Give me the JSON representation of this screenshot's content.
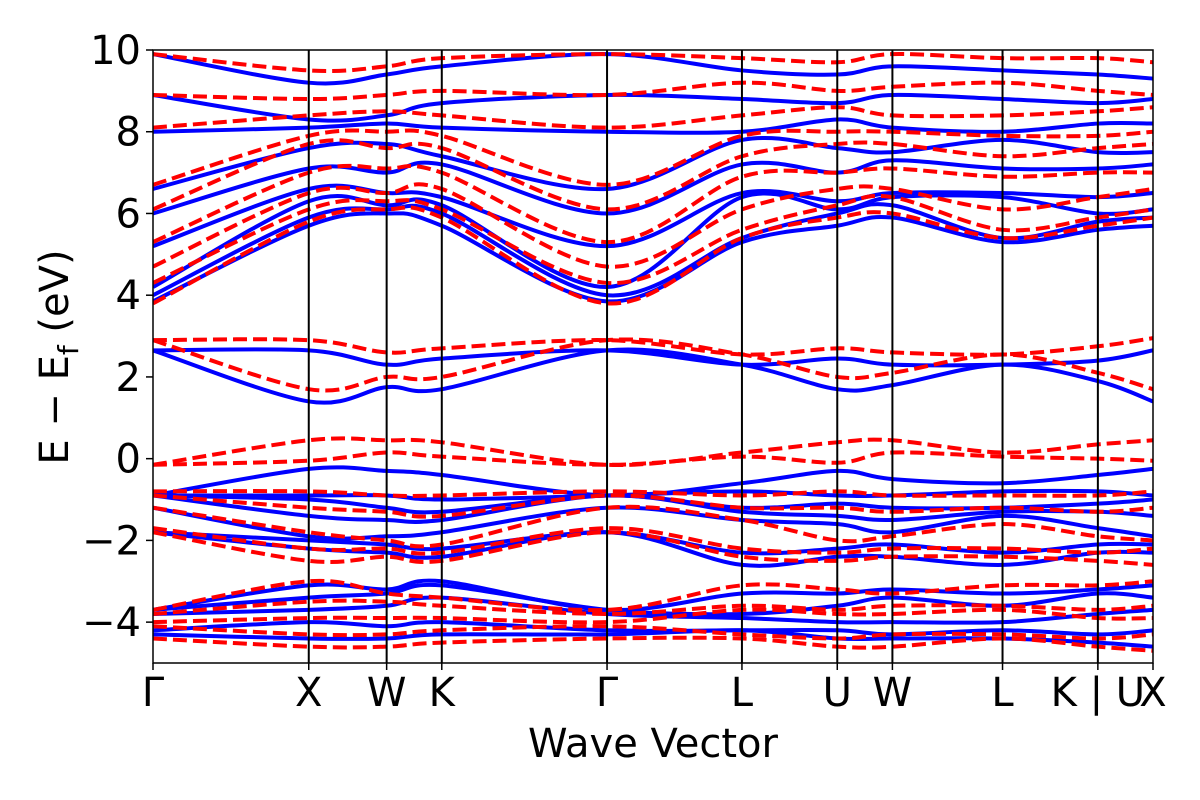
{
  "chart_data": {
    "type": "line",
    "xlabel": "Wave Vector",
    "ylabel_main": "E − E",
    "ylabel_sub": "f",
    "ylabel_unit": " (eV)",
    "ylim": [
      -5,
      10
    ],
    "yticks": [
      {
        "value": 10,
        "label": "10"
      },
      {
        "value": 8,
        "label": "8"
      },
      {
        "value": 6,
        "label": "6"
      },
      {
        "value": 4,
        "label": "4"
      },
      {
        "value": 2,
        "label": "2"
      },
      {
        "value": 0,
        "label": "0"
      },
      {
        "value": -2,
        "label": "−2"
      },
      {
        "value": -4,
        "label": "−4"
      }
    ],
    "kpoints": [
      {
        "label": "Γ",
        "x": 0.0
      },
      {
        "label": "X",
        "x": 1.0
      },
      {
        "label": "W",
        "x": 1.5
      },
      {
        "label": "K",
        "x": 1.854
      },
      {
        "label": "Γ",
        "x": 2.915
      },
      {
        "label": "L",
        "x": 3.781
      },
      {
        "label": "U",
        "x": 4.393
      },
      {
        "label": "W",
        "x": 4.747
      },
      {
        "label": "L",
        "x": 5.454
      },
      {
        "label": "K | U",
        "x": 6.066
      },
      {
        "label": "X",
        "x": 6.42
      }
    ],
    "grid": false,
    "series": [
      {
        "style": "solid",
        "color": "#0000ff",
        "bands": [
          [
            -4.3,
            -4.4,
            -4.4,
            -4.3,
            -4.3,
            -4.2,
            -4.4,
            -4.4,
            -4.4,
            -4.5,
            -4.6
          ],
          [
            -4.2,
            -4.0,
            -4.1,
            -4.0,
            -4.2,
            -4.2,
            -4.2,
            -4.3,
            -4.2,
            -4.3,
            -4.2
          ],
          [
            -3.8,
            -3.7,
            -3.6,
            -3.4,
            -3.8,
            -3.9,
            -4.0,
            -4.0,
            -4.0,
            -3.8,
            -3.7
          ],
          [
            -3.7,
            -3.4,
            -3.3,
            -3.1,
            -3.7,
            -3.8,
            -3.6,
            -3.4,
            -3.6,
            -3.3,
            -3.4
          ],
          [
            -3.7,
            -3.1,
            -3.2,
            -3.0,
            -3.7,
            -3.3,
            -3.3,
            -3.2,
            -3.3,
            -3.2,
            -3.1
          ],
          [
            -1.8,
            -2.2,
            -2.3,
            -2.4,
            -1.8,
            -2.6,
            -2.4,
            -2.4,
            -2.6,
            -2.3,
            -2.3
          ],
          [
            -1.8,
            -2.0,
            -2.1,
            -2.2,
            -1.8,
            -2.3,
            -2.2,
            -2.1,
            -2.3,
            -2.1,
            -2.1
          ],
          [
            -1.2,
            -1.9,
            -1.9,
            -1.8,
            -1.2,
            -1.5,
            -1.6,
            -1.8,
            -1.4,
            -1.7,
            -1.9
          ],
          [
            -0.9,
            -1.4,
            -1.5,
            -1.5,
            -0.9,
            -1.3,
            -1.4,
            -1.5,
            -1.3,
            -1.3,
            -1.4
          ],
          [
            -0.9,
            -1.0,
            -1.2,
            -1.3,
            -0.9,
            -1.2,
            -1.1,
            -1.2,
            -1.2,
            -1.1,
            -1.0
          ],
          [
            -0.9,
            -0.9,
            -0.9,
            -1.0,
            -0.9,
            -0.8,
            -0.9,
            -0.9,
            -0.8,
            -0.8,
            -0.9
          ],
          [
            -0.9,
            -0.25,
            -0.3,
            -0.4,
            -0.9,
            -0.6,
            -0.3,
            -0.5,
            -0.6,
            -0.4,
            -0.25
          ],
          [
            2.65,
            1.4,
            1.75,
            1.7,
            2.65,
            2.3,
            1.7,
            1.8,
            2.3,
            1.9,
            1.4
          ],
          [
            2.65,
            2.65,
            2.3,
            2.45,
            2.65,
            2.3,
            2.45,
            2.3,
            2.3,
            2.4,
            2.65
          ],
          [
            3.85,
            5.7,
            6.0,
            5.7,
            3.85,
            5.3,
            5.7,
            5.9,
            5.3,
            5.6,
            5.7
          ],
          [
            4.0,
            5.9,
            6.1,
            6.0,
            4.0,
            5.4,
            6.0,
            6.2,
            5.4,
            5.8,
            5.9
          ],
          [
            4.2,
            6.3,
            6.2,
            6.2,
            4.2,
            6.4,
            6.1,
            6.4,
            6.4,
            6.0,
            6.1
          ],
          [
            5.2,
            6.6,
            6.5,
            6.4,
            5.2,
            6.5,
            6.3,
            6.5,
            6.5,
            6.4,
            6.5
          ],
          [
            6.0,
            7.1,
            7.0,
            7.2,
            6.0,
            7.2,
            7.0,
            7.3,
            7.1,
            7.1,
            7.2
          ],
          [
            6.6,
            7.6,
            7.7,
            7.4,
            6.6,
            7.8,
            7.6,
            7.5,
            7.8,
            7.5,
            7.5
          ],
          [
            8.0,
            8.1,
            8.2,
            8.1,
            8.0,
            8.0,
            8.3,
            8.1,
            8.0,
            8.2,
            8.2
          ],
          [
            8.9,
            8.3,
            8.4,
            8.7,
            8.9,
            8.8,
            8.7,
            8.9,
            8.8,
            8.7,
            8.8
          ],
          [
            9.9,
            9.2,
            9.4,
            9.6,
            9.9,
            9.5,
            9.4,
            9.6,
            9.5,
            9.4,
            9.3
          ]
        ]
      },
      {
        "style": "dashed",
        "color": "#ff0000",
        "bands": [
          [
            -4.4,
            -4.6,
            -4.6,
            -4.5,
            -4.4,
            -4.4,
            -4.6,
            -4.6,
            -4.4,
            -4.6,
            -4.7
          ],
          [
            -4.1,
            -4.3,
            -4.3,
            -4.2,
            -4.1,
            -4.3,
            -4.4,
            -4.3,
            -4.3,
            -4.4,
            -4.3
          ],
          [
            -4.0,
            -3.9,
            -3.9,
            -3.9,
            -4.0,
            -3.7,
            -3.8,
            -3.8,
            -3.7,
            -3.9,
            -3.9
          ],
          [
            -3.8,
            -3.5,
            -3.5,
            -3.6,
            -3.8,
            -3.6,
            -3.7,
            -3.6,
            -3.6,
            -3.7,
            -3.6
          ],
          [
            -3.7,
            -3.0,
            -3.3,
            -3.4,
            -3.7,
            -3.1,
            -3.2,
            -3.3,
            -3.1,
            -3.1,
            -3.0
          ],
          [
            -1.8,
            -2.5,
            -2.4,
            -2.5,
            -1.8,
            -2.4,
            -2.5,
            -2.4,
            -2.4,
            -2.5,
            -2.6
          ],
          [
            -1.7,
            -2.2,
            -2.2,
            -2.3,
            -1.7,
            -2.2,
            -2.3,
            -2.2,
            -2.2,
            -2.3,
            -2.2
          ],
          [
            -1.2,
            -1.8,
            -2.0,
            -2.1,
            -1.2,
            -1.5,
            -2.0,
            -1.9,
            -1.6,
            -1.9,
            -2.0
          ],
          [
            -0.9,
            -1.2,
            -1.3,
            -1.4,
            -0.9,
            -1.2,
            -1.2,
            -1.3,
            -1.2,
            -1.3,
            -1.2
          ],
          [
            -0.8,
            -0.8,
            -0.9,
            -0.9,
            -0.8,
            -0.9,
            -0.8,
            -0.9,
            -0.9,
            -0.9,
            -0.8
          ],
          [
            -0.15,
            0.45,
            0.45,
            0.4,
            -0.15,
            0.15,
            0.4,
            0.45,
            0.15,
            0.35,
            0.45
          ],
          [
            -0.15,
            -0.05,
            0.15,
            0.05,
            -0.15,
            0.05,
            -0.1,
            0.15,
            0.05,
            0.0,
            -0.05
          ],
          [
            2.9,
            1.7,
            2.0,
            2.0,
            2.9,
            2.55,
            2.0,
            2.1,
            2.55,
            2.1,
            1.7
          ],
          [
            2.9,
            2.9,
            2.6,
            2.7,
            2.9,
            2.55,
            2.7,
            2.6,
            2.55,
            2.75,
            2.95
          ],
          [
            3.8,
            5.8,
            6.1,
            5.9,
            3.8,
            5.4,
            5.9,
            6.0,
            5.4,
            5.7,
            5.9
          ],
          [
            4.3,
            6.1,
            6.3,
            6.1,
            4.3,
            5.6,
            6.2,
            6.4,
            5.6,
            5.9,
            6.1
          ],
          [
            4.7,
            6.5,
            6.5,
            6.6,
            4.7,
            6.1,
            6.6,
            6.6,
            6.1,
            6.4,
            6.6
          ],
          [
            5.3,
            7.0,
            7.1,
            7.0,
            5.3,
            6.9,
            7.0,
            7.1,
            6.9,
            7.0,
            7.0
          ],
          [
            6.1,
            7.7,
            7.6,
            7.6,
            6.1,
            7.4,
            7.7,
            7.7,
            7.4,
            7.6,
            7.7
          ],
          [
            6.7,
            7.9,
            8.0,
            7.9,
            6.7,
            7.9,
            8.0,
            8.0,
            7.9,
            7.9,
            8.0
          ],
          [
            8.1,
            8.4,
            8.5,
            8.4,
            8.1,
            8.4,
            8.6,
            8.4,
            8.4,
            8.5,
            8.6
          ],
          [
            8.9,
            8.8,
            8.9,
            9.0,
            8.9,
            9.2,
            9.0,
            9.1,
            9.2,
            9.0,
            8.9
          ],
          [
            9.9,
            9.5,
            9.6,
            9.8,
            9.9,
            9.8,
            9.7,
            9.9,
            9.8,
            9.8,
            9.7
          ]
        ]
      }
    ]
  }
}
